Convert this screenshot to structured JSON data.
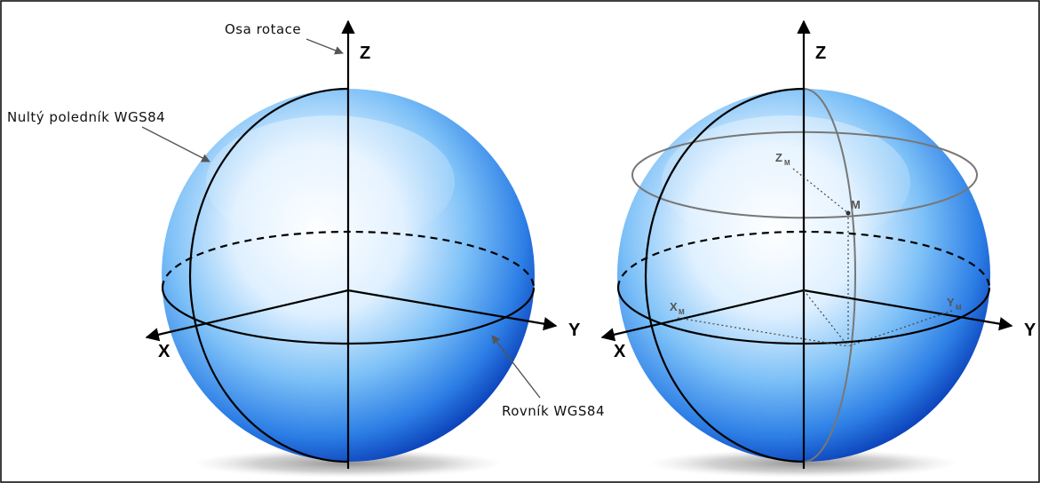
{
  "figure": {
    "left_panel": {
      "annotations": {
        "rotation_axis": "Osa rotace",
        "prime_meridian": "Nultý poledník WGS84",
        "equator": "Rovník WGS84"
      },
      "axes": {
        "z": "Z",
        "x": "X",
        "y": "Y"
      }
    },
    "right_panel": {
      "axes": {
        "z": "Z",
        "x": "X",
        "y": "Y"
      },
      "points": {
        "m": "M",
        "zm": "Z",
        "zm_sub": "M",
        "xm": "X",
        "xm_sub": "M",
        "ym": "Y",
        "ym_sub": "M"
      }
    }
  },
  "colors": {
    "border": "#000000",
    "globe_light": "#eaf5ff",
    "globe_mid": "#4aa7f2",
    "globe_dark": "#0a3fb8",
    "land": "#ffffff",
    "axis": "#000000",
    "annotation_arrow": "#555555",
    "parallel": "#777777"
  }
}
